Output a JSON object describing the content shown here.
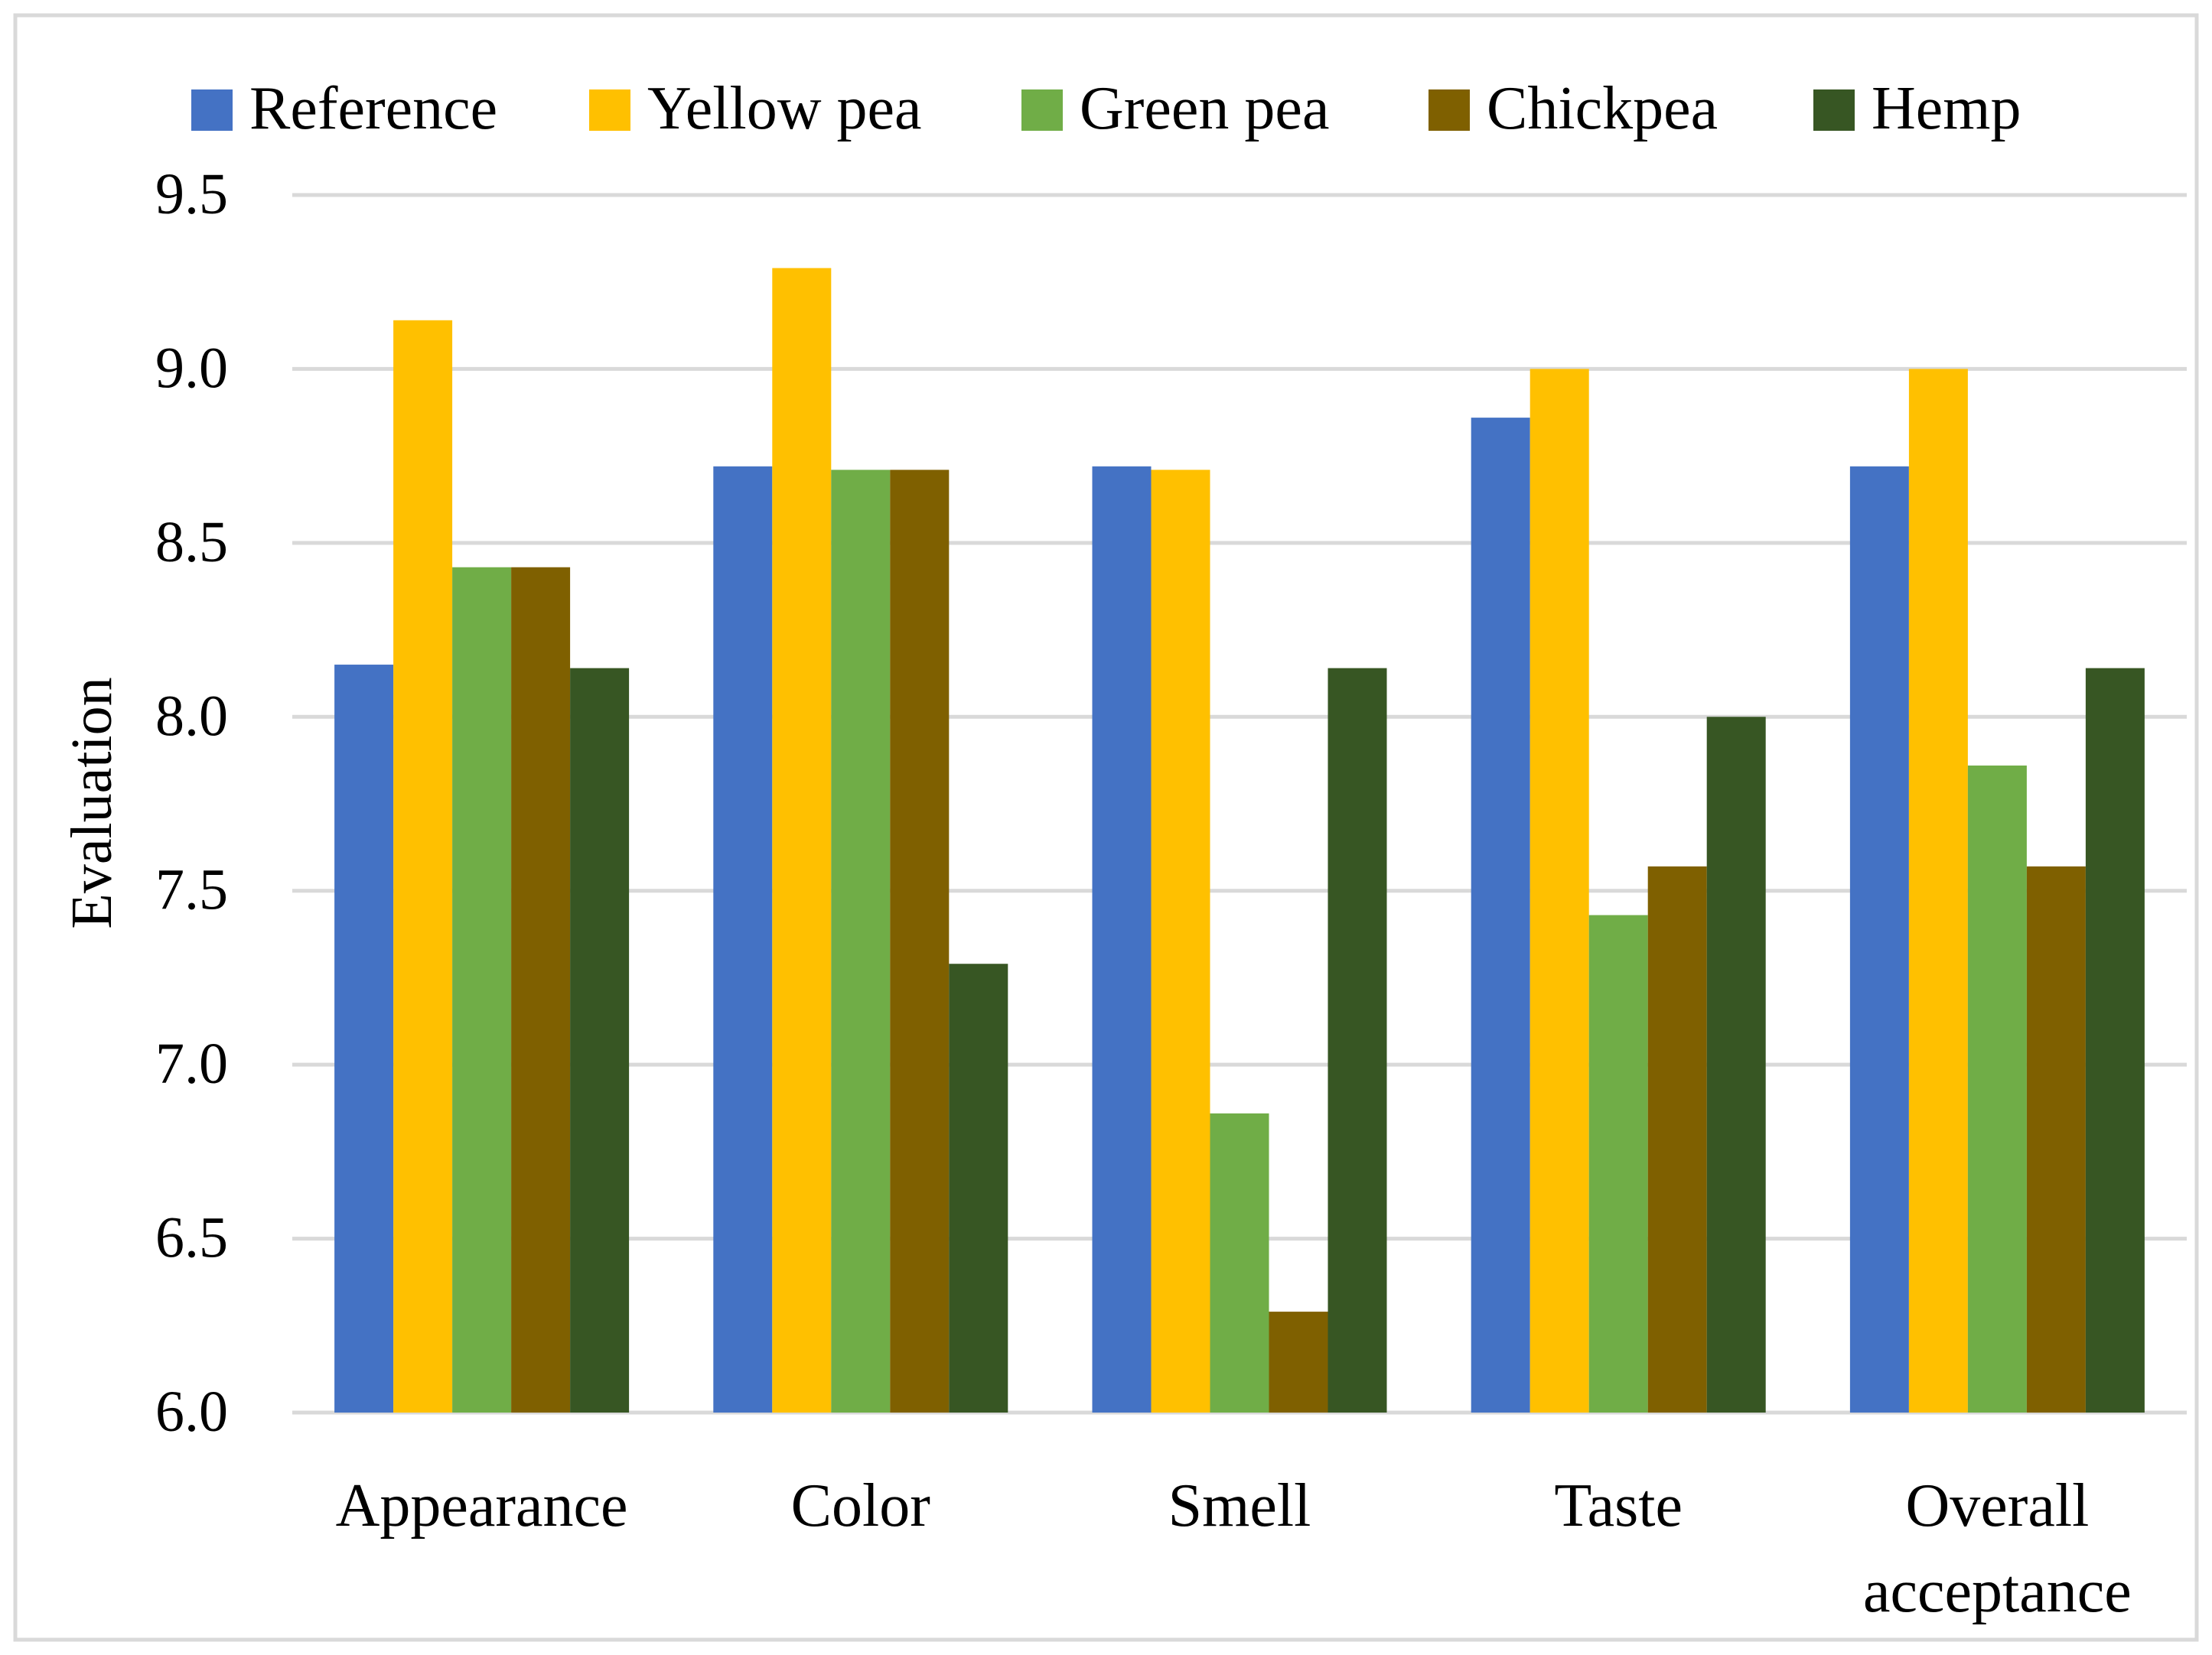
{
  "chart_data": {
    "type": "bar",
    "title": "",
    "xlabel": "",
    "ylabel": "Evaluation",
    "ylim": [
      6.0,
      9.5
    ],
    "yticks": [
      "6.0",
      "6.5",
      "7.0",
      "7.5",
      "8.0",
      "8.5",
      "9.0",
      "9.5"
    ],
    "ytick_values": [
      6.0,
      6.5,
      7.0,
      7.5,
      8.0,
      8.5,
      9.0,
      9.5
    ],
    "grid": true,
    "legend_position": "top",
    "categories": [
      [
        "Appearance"
      ],
      [
        "Color"
      ],
      [
        "Smell"
      ],
      [
        "Taste"
      ],
      [
        "Overall",
        "acceptance"
      ]
    ],
    "series": [
      {
        "name": "Reference",
        "color": "#4472C4",
        "values": [
          8.15,
          8.72,
          8.72,
          8.86,
          8.72
        ]
      },
      {
        "name": "Yellow pea",
        "color": "#FFC000",
        "values": [
          9.14,
          9.29,
          8.71,
          9.0,
          9.0
        ]
      },
      {
        "name": "Green pea",
        "color": "#70AD47",
        "values": [
          8.43,
          8.71,
          6.86,
          7.43,
          7.86
        ]
      },
      {
        "name": "Chickpea",
        "color": "#7F6000",
        "values": [
          8.43,
          8.71,
          6.29,
          7.57,
          7.57
        ]
      },
      {
        "name": "Hemp",
        "color": "#375623",
        "values": [
          8.14,
          7.29,
          8.14,
          8.0,
          8.14
        ]
      }
    ]
  }
}
